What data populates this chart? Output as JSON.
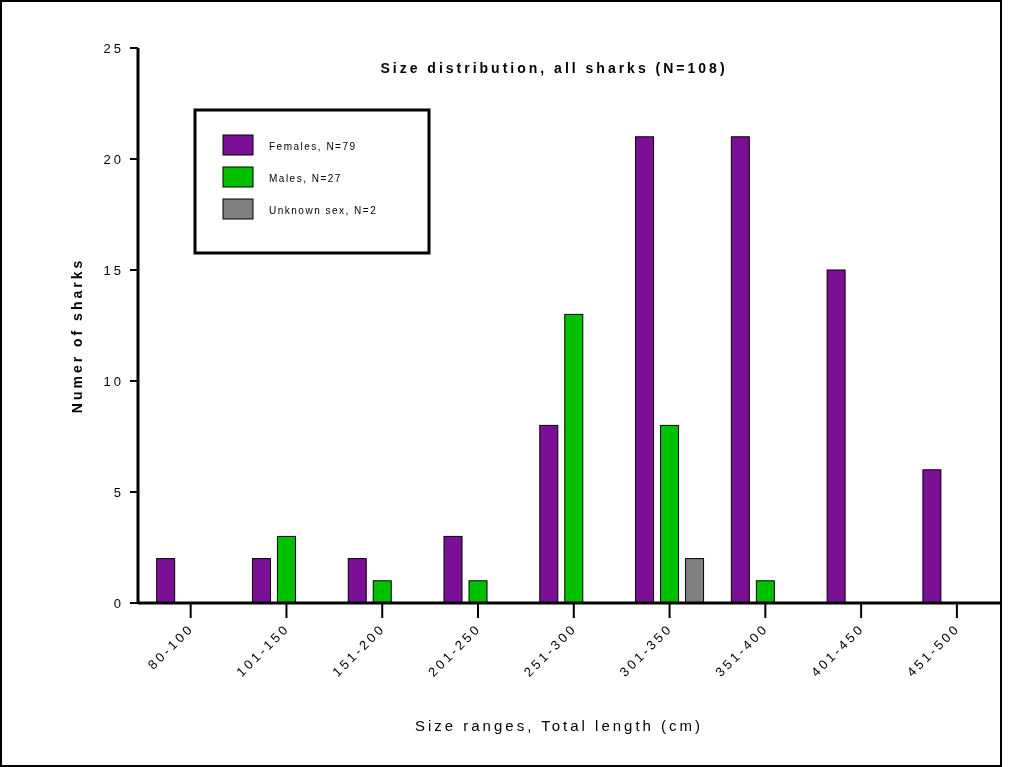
{
  "chart_data": {
    "type": "bar",
    "title": "Size distribution, all sharks (N=108)",
    "xlabel": "Size ranges, Total length (cm)",
    "ylabel": "Numer of sharks",
    "categories": [
      "80-100",
      "101-150",
      "151-200",
      "201-250",
      "251-300",
      "301-350",
      "351-400",
      "401-450",
      "451-500"
    ],
    "series": [
      {
        "name": "Females, N=79",
        "color": "#7b0f96",
        "values": [
          2,
          2,
          2,
          3,
          8,
          21,
          21,
          15,
          6
        ]
      },
      {
        "name": "Males, N=27",
        "color": "#00c000",
        "values": [
          0,
          3,
          1,
          1,
          13,
          8,
          1,
          0,
          0
        ]
      },
      {
        "name": "Unknown sex, N=2",
        "color": "#808080",
        "values": [
          0,
          0,
          0,
          0,
          0,
          2,
          0,
          0,
          0
        ]
      }
    ],
    "ylim": [
      0,
      25
    ],
    "yticks": [
      0,
      5,
      10,
      15,
      20,
      25
    ],
    "grid": false,
    "legend": "top left"
  }
}
